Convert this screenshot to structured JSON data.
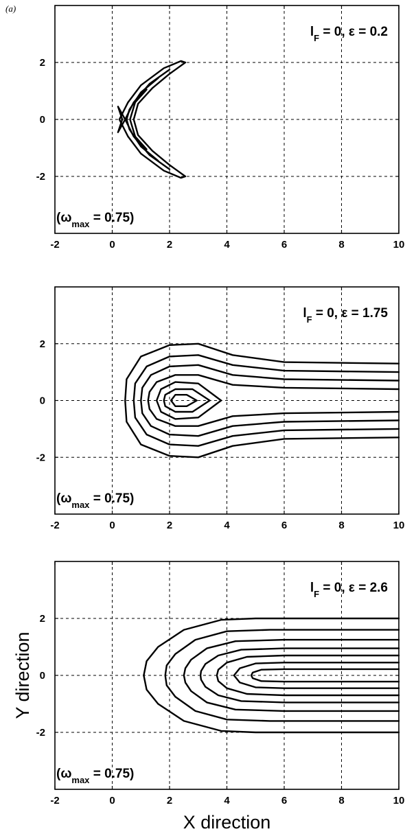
{
  "figure_label": "(a)",
  "chart_data": [
    {
      "type": "contour",
      "annotation": {
        "base": "l",
        "sub": "F",
        "text": " = 0,  ε = 0.2"
      },
      "note": {
        "open": "(ω",
        "sub": "max",
        "close": " =  0.75)"
      },
      "xlim": [
        -2,
        10
      ],
      "ylim": [
        -4,
        4
      ],
      "xticks": [
        "-2",
        "0",
        "2",
        "4",
        "6",
        "8",
        "10"
      ],
      "yticks": [
        "2",
        "0",
        "-2"
      ],
      "grid": true,
      "xlabel": "",
      "ylabel": "",
      "contours": [
        {
          "points": [
            [
              2.4,
              2.05
            ],
            [
              1.8,
              1.8
            ],
            [
              1.0,
              1.2
            ],
            [
              0.55,
              0.6
            ],
            [
              0.25,
              0.0
            ],
            [
              0.55,
              -0.6
            ],
            [
              1.0,
              -1.2
            ],
            [
              1.8,
              -1.8
            ],
            [
              2.4,
              -2.05
            ],
            [
              2.55,
              -2.0
            ],
            [
              2.0,
              -1.6
            ],
            [
              1.4,
              -1.1
            ],
            [
              0.9,
              -0.55
            ],
            [
              0.75,
              0.0
            ],
            [
              0.9,
              0.55
            ],
            [
              1.4,
              1.1
            ],
            [
              2.0,
              1.6
            ],
            [
              2.55,
              2.0
            ],
            [
              2.4,
              2.05
            ]
          ],
          "closed": true
        },
        {
          "points": [
            [
              2.0,
              1.75
            ],
            [
              1.3,
              1.25
            ],
            [
              0.75,
              0.6
            ],
            [
              0.45,
              0.0
            ],
            [
              0.75,
              -0.6
            ],
            [
              1.3,
              -1.25
            ],
            [
              2.0,
              -1.75
            ]
          ],
          "closed": false
        },
        {
          "points": [
            [
              1.6,
              1.45
            ],
            [
              1.0,
              0.95
            ],
            [
              0.6,
              0.35
            ],
            [
              0.5,
              0.0
            ],
            [
              0.6,
              -0.35
            ],
            [
              1.0,
              -0.95
            ],
            [
              1.6,
              -1.45
            ]
          ],
          "closed": false
        },
        {
          "points": [
            [
              1.2,
              1.05
            ],
            [
              0.8,
              0.6
            ],
            [
              0.62,
              0.0
            ],
            [
              0.8,
              -0.6
            ],
            [
              1.2,
              -1.05
            ]
          ],
          "closed": false
        },
        {
          "points": [
            [
              0.2,
              0.45
            ],
            [
              0.35,
              0.0
            ],
            [
              0.2,
              -0.45
            ],
            [
              0.45,
              0.0
            ],
            [
              0.2,
              0.45
            ]
          ],
          "closed": true
        }
      ]
    },
    {
      "type": "contour",
      "annotation": {
        "base": "l",
        "sub": "F",
        "text": " = 0,  ε = 1.75"
      },
      "note": {
        "open": "(ω",
        "sub": "max",
        "close": " =  0.75)"
      },
      "xlim": [
        -2,
        10
      ],
      "ylim": [
        -4,
        4
      ],
      "xticks": [
        "-2",
        "0",
        "2",
        "4",
        "6",
        "8",
        "10"
      ],
      "yticks": [
        "2",
        "0",
        "-2"
      ],
      "grid": true,
      "xlabel": "",
      "ylabel": "",
      "contours": [
        {
          "points": [
            [
              10,
              1.3
            ],
            [
              6,
              1.35
            ],
            [
              4.2,
              1.6
            ],
            [
              3.0,
              2.0
            ],
            [
              2.0,
              1.95
            ],
            [
              1.0,
              1.55
            ],
            [
              0.5,
              0.75
            ],
            [
              0.45,
              0.0
            ],
            [
              0.5,
              -0.75
            ],
            [
              1.0,
              -1.55
            ],
            [
              2.0,
              -1.95
            ],
            [
              3.0,
              -2.0
            ],
            [
              4.2,
              -1.6
            ],
            [
              6,
              -1.35
            ],
            [
              10,
              -1.3
            ]
          ],
          "closed": false
        },
        {
          "points": [
            [
              10,
              1.0
            ],
            [
              6,
              1.05
            ],
            [
              4.2,
              1.25
            ],
            [
              3.0,
              1.6
            ],
            [
              2.0,
              1.55
            ],
            [
              1.2,
              1.2
            ],
            [
              0.8,
              0.6
            ],
            [
              0.75,
              0.0
            ],
            [
              0.8,
              -0.6
            ],
            [
              1.2,
              -1.2
            ],
            [
              2.0,
              -1.55
            ],
            [
              3.0,
              -1.6
            ],
            [
              4.2,
              -1.25
            ],
            [
              6,
              -1.05
            ],
            [
              10,
              -1.0
            ]
          ],
          "closed": false
        },
        {
          "points": [
            [
              10,
              0.7
            ],
            [
              6,
              0.75
            ],
            [
              4.2,
              0.9
            ],
            [
              3.0,
              1.25
            ],
            [
              2.0,
              1.2
            ],
            [
              1.35,
              0.9
            ],
            [
              1.05,
              0.45
            ],
            [
              1.0,
              0.0
            ],
            [
              1.05,
              -0.45
            ],
            [
              1.35,
              -0.9
            ],
            [
              2.0,
              -1.2
            ],
            [
              3.0,
              -1.25
            ],
            [
              4.2,
              -0.9
            ],
            [
              6,
              -0.75
            ],
            [
              10,
              -0.7
            ]
          ],
          "closed": false
        },
        {
          "points": [
            [
              10,
              0.4
            ],
            [
              6,
              0.45
            ],
            [
              4.2,
              0.55
            ],
            [
              3.0,
              0.9
            ],
            [
              2.2,
              0.9
            ],
            [
              1.55,
              0.65
            ],
            [
              1.3,
              0.3
            ],
            [
              1.25,
              0.0
            ],
            [
              1.3,
              -0.3
            ],
            [
              1.55,
              -0.65
            ],
            [
              2.2,
              -0.9
            ],
            [
              3.0,
              -0.9
            ],
            [
              4.2,
              -0.55
            ],
            [
              6,
              -0.45
            ],
            [
              10,
              -0.4
            ]
          ],
          "closed": false
        },
        {
          "points": [
            [
              3.8,
              0.0
            ],
            [
              3.0,
              0.6
            ],
            [
              2.2,
              0.65
            ],
            [
              1.7,
              0.4
            ],
            [
              1.55,
              0.0
            ],
            [
              1.7,
              -0.4
            ],
            [
              2.2,
              -0.65
            ],
            [
              3.0,
              -0.6
            ],
            [
              3.8,
              0.0
            ]
          ],
          "closed": true
        },
        {
          "points": [
            [
              3.4,
              0.0
            ],
            [
              2.8,
              0.4
            ],
            [
              2.2,
              0.4
            ],
            [
              1.85,
              0.2
            ],
            [
              1.8,
              0.0
            ],
            [
              1.85,
              -0.2
            ],
            [
              2.2,
              -0.4
            ],
            [
              2.8,
              -0.4
            ],
            [
              3.4,
              0.0
            ]
          ],
          "closed": true
        },
        {
          "points": [
            [
              2.95,
              0.0
            ],
            [
              2.6,
              0.2
            ],
            [
              2.2,
              0.2
            ],
            [
              2.05,
              0.0
            ],
            [
              2.2,
              -0.2
            ],
            [
              2.6,
              -0.2
            ],
            [
              2.95,
              0.0
            ]
          ],
          "closed": true
        }
      ]
    },
    {
      "type": "contour",
      "annotation": {
        "base": "l",
        "sub": "F",
        "text": " = 0,  ε = 2.6"
      },
      "note": {
        "open": "(ω",
        "sub": "max",
        "close": " =  0.75)"
      },
      "xlim": [
        -2,
        10
      ],
      "ylim": [
        -4,
        4
      ],
      "xticks": [
        "-2",
        "0",
        "2",
        "4",
        "6",
        "8",
        "10"
      ],
      "yticks": [
        "2",
        "0",
        "-2"
      ],
      "grid": true,
      "xlabel": "X direction",
      "ylabel": "Y direction",
      "contours": [
        {
          "points": [
            [
              10,
              2.0
            ],
            [
              5,
              2.0
            ],
            [
              3.8,
              1.95
            ],
            [
              2.5,
              1.6
            ],
            [
              1.6,
              1.0
            ],
            [
              1.2,
              0.5
            ],
            [
              1.1,
              0.0
            ],
            [
              1.2,
              -0.5
            ],
            [
              1.6,
              -1.0
            ],
            [
              2.5,
              -1.6
            ],
            [
              3.8,
              -1.95
            ],
            [
              5,
              -2.0
            ],
            [
              10,
              -2.0
            ]
          ],
          "closed": false
        },
        {
          "points": [
            [
              10,
              1.6
            ],
            [
              5.5,
              1.6
            ],
            [
              4.0,
              1.55
            ],
            [
              2.9,
              1.25
            ],
            [
              2.2,
              0.75
            ],
            [
              1.9,
              0.35
            ],
            [
              1.85,
              0.0
            ],
            [
              1.9,
              -0.35
            ],
            [
              2.2,
              -0.75
            ],
            [
              2.9,
              -1.25
            ],
            [
              4.0,
              -1.55
            ],
            [
              5.5,
              -1.6
            ],
            [
              10,
              -1.6
            ]
          ],
          "closed": false
        },
        {
          "points": [
            [
              10,
              1.25
            ],
            [
              6,
              1.25
            ],
            [
              4.3,
              1.2
            ],
            [
              3.3,
              0.95
            ],
            [
              2.75,
              0.55
            ],
            [
              2.55,
              0.25
            ],
            [
              2.5,
              0.0
            ],
            [
              2.55,
              -0.25
            ],
            [
              2.75,
              -0.55
            ],
            [
              3.3,
              -0.95
            ],
            [
              4.3,
              -1.2
            ],
            [
              6,
              -1.25
            ],
            [
              10,
              -1.25
            ]
          ],
          "closed": false
        },
        {
          "points": [
            [
              10,
              0.95
            ],
            [
              6,
              0.95
            ],
            [
              4.5,
              0.9
            ],
            [
              3.7,
              0.7
            ],
            [
              3.25,
              0.4
            ],
            [
              3.1,
              0.15
            ],
            [
              3.08,
              0.0
            ],
            [
              3.1,
              -0.15
            ],
            [
              3.25,
              -0.4
            ],
            [
              3.7,
              -0.7
            ],
            [
              4.5,
              -0.9
            ],
            [
              6,
              -0.95
            ],
            [
              10,
              -0.95
            ]
          ],
          "closed": false
        },
        {
          "points": [
            [
              10,
              0.7
            ],
            [
              6,
              0.7
            ],
            [
              4.7,
              0.65
            ],
            [
              4.0,
              0.45
            ],
            [
              3.7,
              0.2
            ],
            [
              3.65,
              0.0
            ],
            [
              3.7,
              -0.2
            ],
            [
              4.0,
              -0.45
            ],
            [
              4.7,
              -0.65
            ],
            [
              6,
              -0.7
            ],
            [
              10,
              -0.7
            ]
          ],
          "closed": false
        },
        {
          "points": [
            [
              10,
              0.45
            ],
            [
              6,
              0.45
            ],
            [
              5.0,
              0.42
            ],
            [
              4.45,
              0.25
            ],
            [
              4.25,
              0.0
            ],
            [
              4.45,
              -0.25
            ],
            [
              5.0,
              -0.42
            ],
            [
              6,
              -0.45
            ],
            [
              10,
              -0.45
            ]
          ],
          "closed": false
        },
        {
          "points": [
            [
              10,
              0.22
            ],
            [
              6,
              0.22
            ],
            [
              5.2,
              0.2
            ],
            [
              4.9,
              0.1
            ],
            [
              4.85,
              0.0
            ],
            [
              4.9,
              -0.1
            ],
            [
              5.2,
              -0.2
            ],
            [
              6,
              -0.22
            ],
            [
              10,
              -0.22
            ]
          ],
          "closed": false
        }
      ]
    }
  ]
}
